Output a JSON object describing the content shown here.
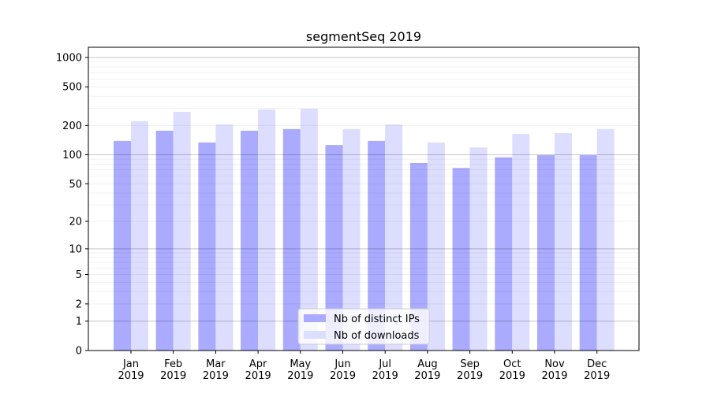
{
  "chart_data": {
    "type": "bar",
    "title": "segmentSeq 2019",
    "xlabel": "",
    "ylabel": "",
    "yscale": "symlog (log10(y+1))",
    "ylim": [
      0,
      1300
    ],
    "yticks": [
      0,
      1,
      2,
      5,
      10,
      20,
      50,
      100,
      200,
      500,
      1000
    ],
    "grid": true,
    "legend_position": "bottom-center",
    "categories": [
      "Jan\n2019",
      "Feb\n2019",
      "Mar\n2019",
      "Apr\n2019",
      "May\n2019",
      "Jun\n2019",
      "Jul\n2019",
      "Aug\n2019",
      "Sep\n2019",
      "Oct\n2019",
      "Nov\n2019",
      "Dec\n2019"
    ],
    "series": [
      {
        "name": "Nb of distinct IPs",
        "color": "#aaaaff",
        "values": [
          139,
          177,
          134,
          177,
          184,
          126,
          139,
          82,
          73,
          94,
          99,
          99
        ]
      },
      {
        "name": "Nb of downloads",
        "color": "#ddddff",
        "values": [
          221,
          277,
          205,
          293,
          298,
          184,
          205,
          134,
          119,
          164,
          167,
          184
        ]
      }
    ]
  }
}
